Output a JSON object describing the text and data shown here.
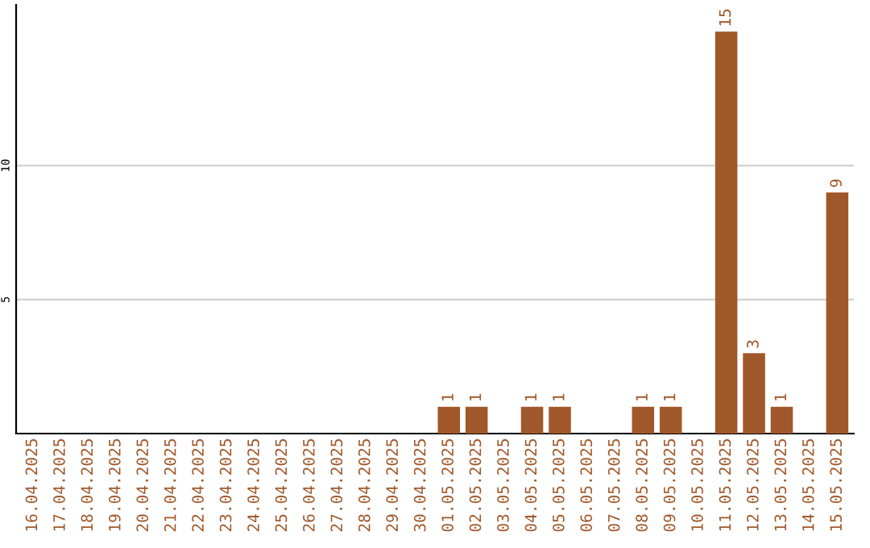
{
  "chart_data": {
    "type": "bar",
    "categories": [
      "16.04.2025",
      "17.04.2025",
      "18.04.2025",
      "19.04.2025",
      "20.04.2025",
      "21.04.2025",
      "22.04.2025",
      "23.04.2025",
      "24.04.2025",
      "25.04.2025",
      "26.04.2025",
      "27.04.2025",
      "28.04.2025",
      "29.04.2025",
      "30.04.2025",
      "01.05.2025",
      "02.05.2025",
      "03.05.2025",
      "04.05.2025",
      "05.05.2025",
      "06.05.2025",
      "07.05.2025",
      "08.05.2025",
      "09.05.2025",
      "10.05.2025",
      "11.05.2025",
      "12.05.2025",
      "13.05.2025",
      "14.05.2025",
      "15.05.2025"
    ],
    "values": [
      0,
      0,
      0,
      0,
      0,
      0,
      0,
      0,
      0,
      0,
      0,
      0,
      0,
      0,
      0,
      1,
      1,
      0,
      1,
      1,
      0,
      0,
      1,
      1,
      0,
      15,
      3,
      1,
      0,
      9
    ],
    "value_labels": [
      null,
      null,
      null,
      null,
      null,
      null,
      null,
      null,
      null,
      null,
      null,
      null,
      null,
      null,
      null,
      "1",
      "1",
      null,
      "1",
      "1",
      null,
      null,
      "1",
      "1",
      null,
      "15",
      "3",
      "1",
      null,
      "9"
    ],
    "color": "#a0582a",
    "ylim": [
      0,
      16
    ],
    "yticks": [
      5,
      10
    ],
    "grid": "y"
  }
}
